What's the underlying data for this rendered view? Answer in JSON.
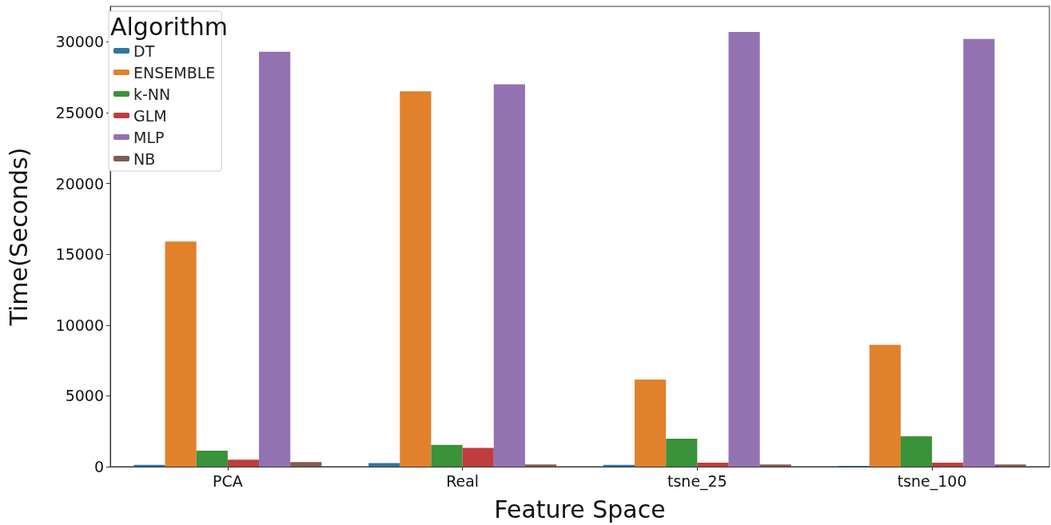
{
  "chart_data": {
    "type": "bar",
    "xlabel": "Feature Space",
    "ylabel": "Time(Seconds)",
    "legend_title": "Algorithm",
    "legend": "top left",
    "grid": false,
    "categories": [
      "PCA",
      "Real",
      "tsne_25",
      "tsne_100"
    ],
    "ylim": [
      0,
      32500
    ],
    "yticks": [
      0,
      5000,
      10000,
      15000,
      20000,
      25000,
      30000
    ],
    "series": [
      {
        "name": "DT",
        "color": "#3274a1",
        "values": [
          120,
          250,
          120,
          60
        ]
      },
      {
        "name": "ENSEMBLE",
        "color": "#e1812c",
        "values": [
          15900,
          26500,
          6150,
          8600
        ]
      },
      {
        "name": "k-NN",
        "color": "#3a923a",
        "values": [
          1130,
          1540,
          1970,
          2140
        ]
      },
      {
        "name": "GLM",
        "color": "#c03d3e",
        "values": [
          500,
          1320,
          280,
          280
        ]
      },
      {
        "name": "MLP",
        "color": "#9372b2",
        "values": [
          29300,
          27000,
          30700,
          30200
        ]
      },
      {
        "name": "NB",
        "color": "#845b53",
        "values": [
          330,
          150,
          150,
          150
        ]
      }
    ]
  }
}
